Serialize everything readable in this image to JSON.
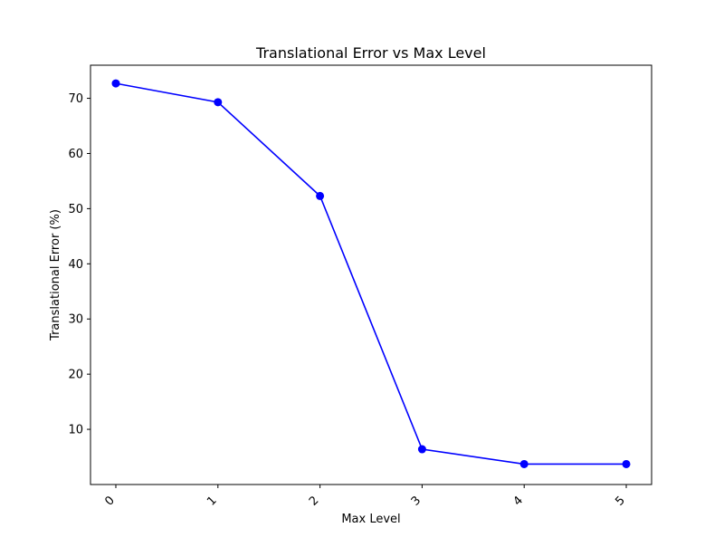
{
  "chart_data": {
    "type": "line",
    "title": "Translational Error vs Max Level",
    "xlabel": "Max Level",
    "ylabel": "Translational Error (%)",
    "categories": [
      "0",
      "1",
      "2",
      "3",
      "4",
      "5"
    ],
    "series": [
      {
        "values": [
          72.7,
          69.3,
          52.3,
          6.4,
          3.7,
          3.7
        ],
        "color": "#0000ff",
        "marker": "circle"
      }
    ],
    "yticks": [
      "10",
      "20",
      "30",
      "40",
      "50",
      "60",
      "70"
    ],
    "ylim": [
      0,
      76
    ],
    "grid": false,
    "legend": false
  }
}
